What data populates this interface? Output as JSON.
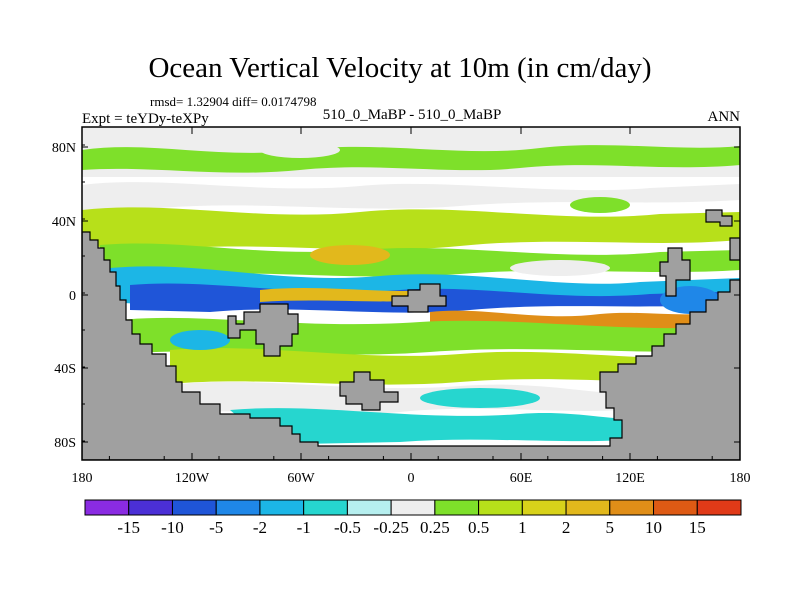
{
  "title": "Ocean Vertical Velocity at 10m (in cm/day)",
  "stats": "rmsd= 1.32904 diff= 0.0174798",
  "experiment": "Expt = teYDy-teXPy",
  "case_label": "510_0_MaBP - 510_0_MaBP",
  "season": "ANN",
  "map": {
    "land_color": "#a0a0a0",
    "lat_ticks": [
      "80N",
      "40N",
      "0",
      "40S",
      "80S"
    ],
    "lon_ticks": [
      "180",
      "120W",
      "60W",
      "0",
      "60E",
      "120E",
      "180"
    ]
  },
  "colorbar": {
    "colors": [
      "#8a2be2",
      "#4b2fd6",
      "#1f55d8",
      "#1f87e8",
      "#1cb6e6",
      "#26d6cf",
      "#b6efef",
      "#eeeeee",
      "#7ee02a",
      "#b7e01a",
      "#d8d21a",
      "#e2b81c",
      "#e08e18",
      "#de5a14",
      "#e03a18"
    ],
    "labels": [
      "-15",
      "-10",
      "-5",
      "-2",
      "-1",
      "-0.5",
      "-0.25",
      "0.25",
      "0.5",
      "1",
      "2",
      "5",
      "10",
      "15"
    ]
  }
}
